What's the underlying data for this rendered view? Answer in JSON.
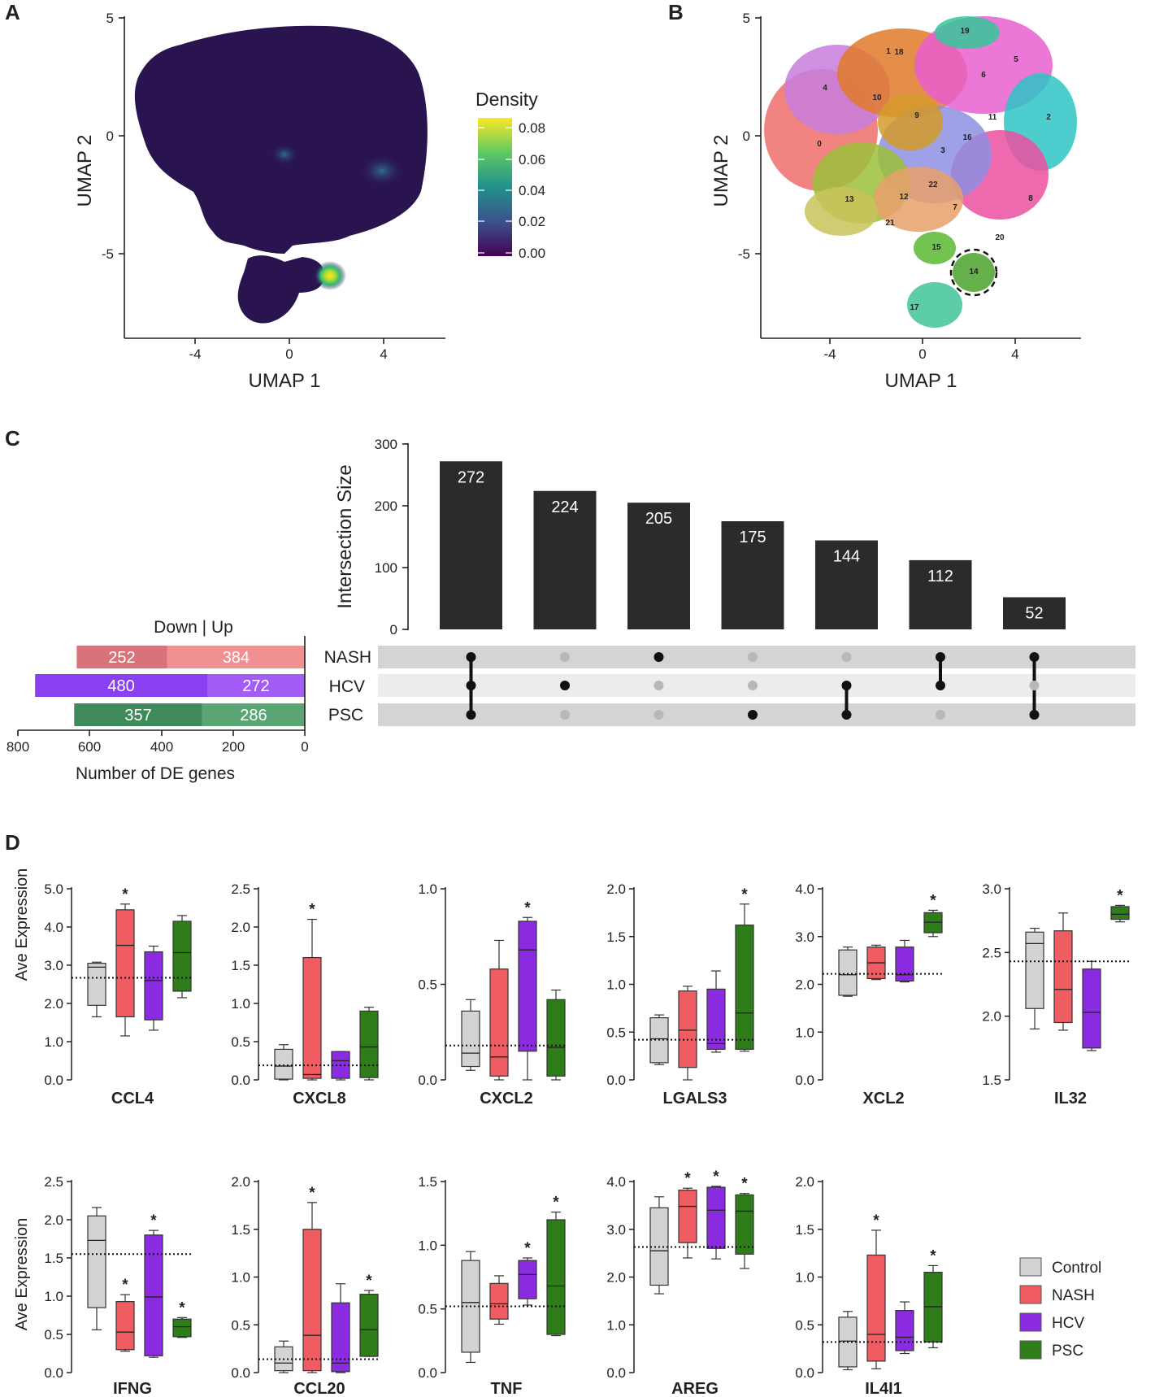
{
  "panels": {
    "A": "A",
    "B": "B",
    "C": "C",
    "D": "D"
  },
  "umap": {
    "x_label": "UMAP 1",
    "y_label": "UMAP 2",
    "x_ticks": [
      "-4",
      "0",
      "4"
    ],
    "y_ticks": [
      "5",
      "0",
      "-5"
    ],
    "density_title": "Density",
    "density_ticks": [
      "0.08",
      "0.06",
      "0.04",
      "0.02",
      "0.00"
    ],
    "colors": {
      "bg": "#2a1450",
      "mid": "#3b3f8a",
      "teal": "#21918c",
      "green": "#5ec962",
      "yellow": "#fde725"
    },
    "cluster_labels": [
      "0",
      "1",
      "2",
      "3",
      "4",
      "5",
      "6",
      "7",
      "8",
      "9",
      "10",
      "11",
      "12",
      "13",
      "14",
      "15",
      "16",
      "17",
      "18",
      "19",
      "20",
      "21",
      "22"
    ]
  },
  "upset": {
    "y_label": "Intersection Size",
    "y_ticks": [
      "300",
      "200",
      "100",
      "0"
    ],
    "sets": [
      "NASH",
      "HCV",
      "PSC"
    ],
    "down_up_title": "Down | Up",
    "set_x_label": "Number of DE genes",
    "set_x_ticks": [
      "800",
      "600",
      "400",
      "200",
      "0"
    ],
    "intersections": [
      {
        "size": 272,
        "label": "272",
        "members": [
          0,
          1,
          2
        ]
      },
      {
        "size": 224,
        "label": "224",
        "members": [
          1
        ]
      },
      {
        "size": 205,
        "label": "205",
        "members": [
          0
        ]
      },
      {
        "size": 175,
        "label": "175",
        "members": [
          2
        ]
      },
      {
        "size": 144,
        "label": "144",
        "members": [
          1,
          2
        ]
      },
      {
        "size": 112,
        "label": "112",
        "members": [
          0,
          1
        ]
      },
      {
        "size": 52,
        "label": "52",
        "members": [
          0,
          2
        ]
      }
    ],
    "set_sizes": [
      {
        "set": "NASH",
        "down": 252,
        "up": 384,
        "down_label": "252",
        "up_label": "384",
        "down_color": "#d9737a",
        "up_color": "#f09092"
      },
      {
        "set": "HCV",
        "down": 480,
        "up": 272,
        "down_label": "480",
        "up_label": "272",
        "down_color": "#8a3ff0",
        "up_color": "#a45cf7"
      },
      {
        "set": "PSC",
        "down": 357,
        "up": 286,
        "down_label": "357",
        "up_label": "286",
        "down_color": "#3f8a5b",
        "up_color": "#5aa574"
      }
    ]
  },
  "chart_data": {
    "type": "box",
    "y_label": "Ave Expression",
    "groups": [
      "Control",
      "NASH",
      "HCV",
      "PSC"
    ],
    "group_colors": [
      "#d3d3d3",
      "#ef5d62",
      "#8a2be2",
      "#2e7d1a"
    ],
    "legend": [
      "Control",
      "NASH",
      "HCV",
      "PSC"
    ],
    "genes": [
      {
        "name": "CCL4",
        "ylim": [
          0,
          5
        ],
        "ticks": [
          "0.0",
          "1.0",
          "2.0",
          "3.0",
          "4.0",
          "5.0"
        ],
        "ref": 2.67,
        "boxes": [
          [
            1.65,
            1.95,
            2.95,
            3.05,
            3.08
          ],
          [
            1.15,
            1.65,
            3.52,
            4.45,
            4.6
          ],
          [
            1.3,
            1.57,
            2.6,
            3.35,
            3.5
          ],
          [
            2.15,
            2.32,
            3.33,
            4.15,
            4.3
          ]
        ],
        "stars": [
          false,
          true,
          false,
          false
        ]
      },
      {
        "name": "CXCL8",
        "ylim": [
          0,
          2.5
        ],
        "ticks": [
          "0.0",
          "0.5",
          "1.0",
          "1.5",
          "2.0",
          "2.5"
        ],
        "ref": 0.19,
        "boxes": [
          [
            0.0,
            0.01,
            0.18,
            0.4,
            0.46
          ],
          [
            0.0,
            0.02,
            0.07,
            1.6,
            2.1
          ],
          [
            0.0,
            0.02,
            0.25,
            0.37,
            0.37
          ],
          [
            0.0,
            0.03,
            0.43,
            0.9,
            0.95
          ]
        ],
        "stars": [
          false,
          true,
          false,
          false
        ]
      },
      {
        "name": "CXCL2",
        "ylim": [
          0,
          1
        ],
        "ticks": [
          "0.0",
          "0.5",
          "1.0"
        ],
        "ref": 0.18,
        "boxes": [
          [
            0.05,
            0.07,
            0.14,
            0.36,
            0.42
          ],
          [
            0.0,
            0.02,
            0.12,
            0.58,
            0.73
          ],
          [
            0.0,
            0.15,
            0.68,
            0.83,
            0.85
          ],
          [
            0.0,
            0.02,
            0.17,
            0.42,
            0.47
          ]
        ],
        "stars": [
          false,
          false,
          true,
          false
        ]
      },
      {
        "name": "LGALS3",
        "ylim": [
          0,
          2
        ],
        "ticks": [
          "0.0",
          "0.5",
          "1.0",
          "1.5",
          "2.0"
        ],
        "ref": 0.42,
        "boxes": [
          [
            0.16,
            0.18,
            0.43,
            0.65,
            0.68
          ],
          [
            0.0,
            0.13,
            0.52,
            0.93,
            0.98
          ],
          [
            0.29,
            0.32,
            0.38,
            0.95,
            1.14
          ],
          [
            0.3,
            0.32,
            0.7,
            1.62,
            1.84
          ]
        ],
        "stars": [
          false,
          false,
          false,
          true
        ]
      },
      {
        "name": "XCL2",
        "ylim": [
          0,
          4
        ],
        "ticks": [
          "0.0",
          "1.0",
          "2.0",
          "3.0",
          "4.0"
        ],
        "ref": 2.22,
        "boxes": [
          [
            1.75,
            1.77,
            2.2,
            2.72,
            2.78
          ],
          [
            2.1,
            2.12,
            2.45,
            2.78,
            2.82
          ],
          [
            2.05,
            2.07,
            2.2,
            2.78,
            2.92
          ],
          [
            3.0,
            3.08,
            3.3,
            3.5,
            3.55
          ]
        ],
        "stars": [
          false,
          false,
          false,
          true
        ]
      },
      {
        "name": "IL32",
        "ylim": [
          1.5,
          3
        ],
        "ticks": [
          "1.5",
          "2.0",
          "2.5",
          "3.0"
        ],
        "ref": 2.43,
        "boxes": [
          [
            1.9,
            2.06,
            2.57,
            2.66,
            2.69
          ],
          [
            1.89,
            1.95,
            2.21,
            2.67,
            2.81
          ],
          [
            1.73,
            1.75,
            2.03,
            2.37,
            2.43
          ],
          [
            2.74,
            2.76,
            2.8,
            2.86,
            2.87
          ]
        ],
        "stars": [
          false,
          false,
          false,
          true
        ]
      },
      {
        "name": "IFNG",
        "ylim": [
          0,
          2.5
        ],
        "ticks": [
          "0.0",
          "0.5",
          "1.0",
          "1.5",
          "2.0",
          "2.5"
        ],
        "ref": 1.55,
        "boxes": [
          [
            0.56,
            0.85,
            1.73,
            2.05,
            2.16
          ],
          [
            0.28,
            0.3,
            0.53,
            0.93,
            1.02
          ],
          [
            0.2,
            0.22,
            0.99,
            1.8,
            1.86
          ],
          [
            0.46,
            0.47,
            0.6,
            0.7,
            0.72
          ]
        ],
        "stars": [
          false,
          true,
          true,
          true
        ]
      },
      {
        "name": "CCL20",
        "ylim": [
          0,
          2
        ],
        "ticks": [
          "0.0",
          "0.5",
          "1.0",
          "1.5",
          "2.0"
        ],
        "ref": 0.14,
        "boxes": [
          [
            0.0,
            0.02,
            0.1,
            0.27,
            0.33
          ],
          [
            0.0,
            0.02,
            0.39,
            1.5,
            1.78
          ],
          [
            0.0,
            0.01,
            0.1,
            0.73,
            0.93
          ],
          [
            0.17,
            0.17,
            0.45,
            0.82,
            0.86
          ]
        ],
        "stars": [
          false,
          true,
          false,
          true
        ]
      },
      {
        "name": "TNF",
        "ylim": [
          0,
          1.5
        ],
        "ticks": [
          "0.0",
          "0.5",
          "1.0",
          "1.5"
        ],
        "ref": 0.52,
        "boxes": [
          [
            0.08,
            0.16,
            0.55,
            0.88,
            0.95
          ],
          [
            0.38,
            0.42,
            0.54,
            0.7,
            0.76
          ],
          [
            0.53,
            0.58,
            0.77,
            0.88,
            0.9
          ],
          [
            0.29,
            0.3,
            0.68,
            1.2,
            1.26
          ]
        ],
        "stars": [
          false,
          false,
          true,
          true
        ]
      },
      {
        "name": "AREG",
        "ylim": [
          0,
          4
        ],
        "ticks": [
          "0.0",
          "1.0",
          "2.0",
          "3.0",
          "4.0"
        ],
        "ref": 2.63,
        "boxes": [
          [
            1.65,
            1.83,
            2.55,
            3.45,
            3.68
          ],
          [
            2.4,
            2.72,
            3.48,
            3.82,
            3.86
          ],
          [
            2.38,
            2.6,
            3.4,
            3.88,
            3.9
          ],
          [
            2.18,
            2.48,
            3.38,
            3.72,
            3.75
          ]
        ],
        "stars": [
          false,
          true,
          true,
          true
        ]
      },
      {
        "name": "IL4I1",
        "ylim": [
          0,
          2
        ],
        "ticks": [
          "0.0",
          "0.5",
          "1.0",
          "1.5",
          "2.0"
        ],
        "ref": 0.32,
        "boxes": [
          [
            0.03,
            0.06,
            0.33,
            0.58,
            0.64
          ],
          [
            0.04,
            0.12,
            0.4,
            1.23,
            1.49
          ],
          [
            0.2,
            0.23,
            0.37,
            0.65,
            0.74
          ],
          [
            0.26,
            0.32,
            0.69,
            1.05,
            1.12
          ]
        ],
        "stars": [
          false,
          true,
          false,
          true
        ]
      }
    ]
  }
}
